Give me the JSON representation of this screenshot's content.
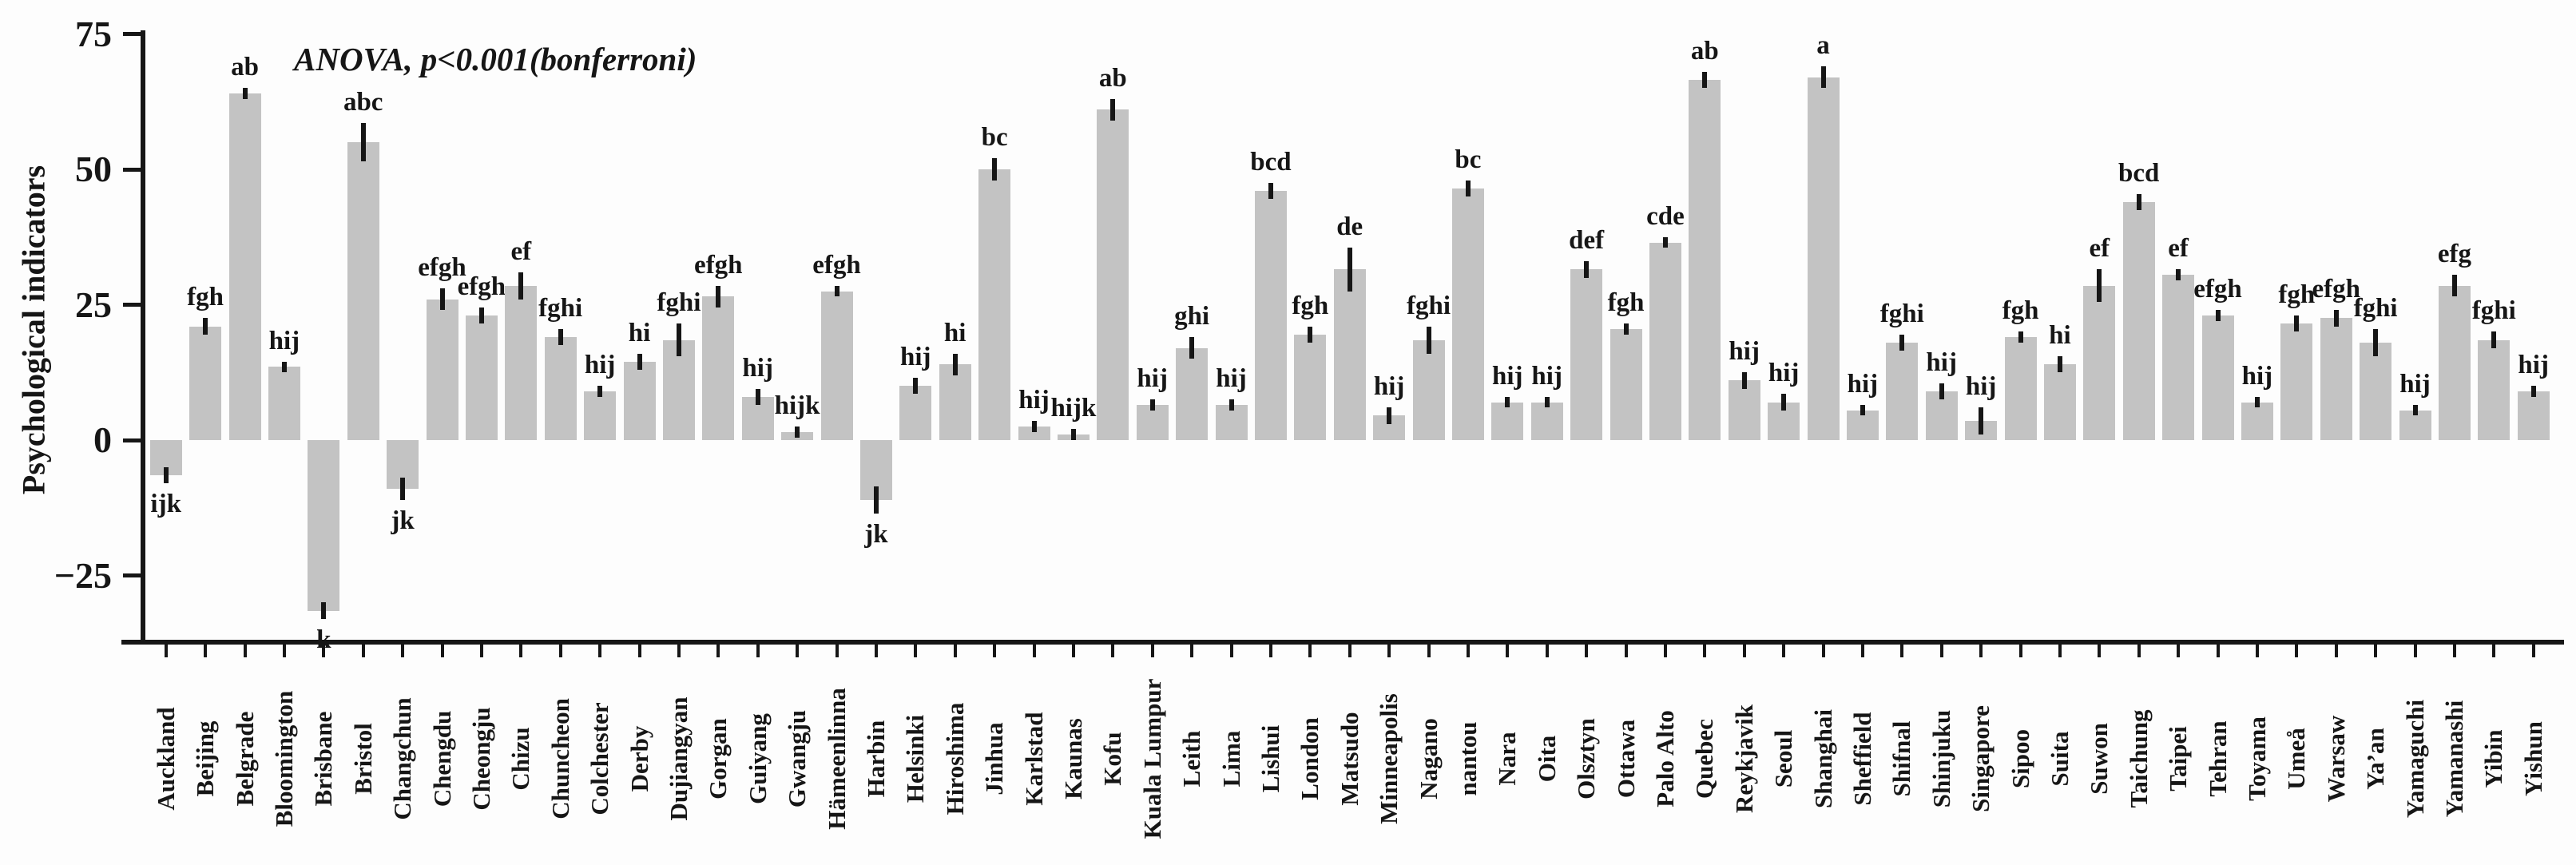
{
  "figure": {
    "ylabel": "Psychological indicators",
    "annotation": "ANOVA, p<0.001(bonferroni)"
  },
  "chart_data": {
    "type": "bar",
    "title": "",
    "annotation": "ANOVA, p<0.001(bonferroni)",
    "xlabel": "",
    "ylabel": "Psychological indicators",
    "ylim": [
      -37,
      76
    ],
    "yticks": [
      75,
      50,
      25,
      0,
      -25
    ],
    "ytick_labels": [
      "75",
      "50",
      "25",
      "0",
      "−25"
    ],
    "grid": false,
    "legend": "none",
    "bar_color": "#c3c3c3",
    "axis_color": "#161616",
    "error_bar_color": "#161616",
    "categories": [
      "Auckland",
      "Beijing",
      "Belgrade",
      "Bloomington",
      "Brisbane",
      "Bristol",
      "Changchun",
      "Chengdu",
      "Cheongju",
      "Chizu",
      "Chuncheon",
      "Colchester",
      "Derby",
      "Dujiangyan",
      "Gorgan",
      "Guiyang",
      "Gwangju",
      "Hämeenlinna",
      "Harbin",
      "Helsinki",
      "Hiroshima",
      "Jinhua",
      "Karlstad",
      "Kaunas",
      "Kofu",
      "Kuala Lumpur",
      "Leith",
      "Lima",
      "Lishui",
      "London",
      "Matsudo",
      "Minneapolis",
      "Nagano",
      "nantou",
      "Nara",
      "Oita",
      "Olsztyn",
      "Ottawa",
      "Palo Alto",
      "Quebec",
      "Reykjavik",
      "Seoul",
      "Shanghai",
      "Sheffield",
      "Shifnal",
      "Shinjuku",
      "Singapore",
      "Sipoo",
      "Suita",
      "Suwon",
      "Taichung",
      "Taipei",
      "Tehran",
      "Toyama",
      "Umeå",
      "Warsaw",
      "Ya’an",
      "Yamaguchi",
      "Yamanashi",
      "Yibin",
      "Yishun"
    ],
    "values": [
      -6.5,
      21,
      64,
      13.5,
      -31.5,
      55,
      -9,
      26,
      23,
      28.5,
      19,
      9,
      14.5,
      18.5,
      26.5,
      8,
      1.5,
      27.5,
      -11,
      10,
      14,
      50,
      2.5,
      1,
      61,
      6.5,
      17,
      6.5,
      46,
      19.5,
      31.5,
      4.5,
      18.5,
      46.5,
      7,
      7,
      31.5,
      20.5,
      36.5,
      66.5,
      11,
      7,
      67,
      5.5,
      18,
      9,
      3.5,
      19,
      14,
      28.5,
      44,
      30.5,
      23,
      7,
      21.5,
      22.5,
      18,
      5.5,
      28.5,
      18.5,
      9
    ],
    "errors": [
      1.5,
      1.5,
      1,
      1,
      1.5,
      3.5,
      2,
      2,
      1.5,
      2.5,
      1.5,
      1,
      1.5,
      3,
      2,
      1.5,
      1,
      1,
      2.5,
      1.5,
      2,
      2,
      1,
      1,
      2,
      1,
      2,
      1,
      1.5,
      1.5,
      4,
      1.5,
      2.5,
      1.5,
      1,
      1,
      1.5,
      1,
      1,
      1.5,
      1.5,
      1.5,
      2,
      1,
      1.5,
      1.5,
      2.5,
      1,
      1.5,
      3,
      1.5,
      1,
      1,
      1,
      1.5,
      1.5,
      2.5,
      1,
      2,
      1.5,
      1
    ],
    "sig_letters": [
      "ijk",
      "fgh",
      "ab",
      "hij",
      "k",
      "abc",
      "jk",
      "efgh",
      "efgh",
      "ef",
      "fghi",
      "hij",
      "hi",
      "fghi",
      "efgh",
      "hij",
      "hijk",
      "efgh",
      "jk",
      "hij",
      "hi",
      "bc",
      "hij",
      "hijk",
      "ab",
      "hij",
      "ghi",
      "hij",
      "bcd",
      "fgh",
      "de",
      "hij",
      "fghi",
      "bc",
      "hij",
      "hij",
      "def",
      "fgh",
      "cde",
      "ab",
      "hij",
      "hij",
      "a",
      "hij",
      "fghi",
      "hij",
      "hij",
      "fgh",
      "hi",
      "ef",
      "bcd",
      "ef",
      "efgh",
      "hij",
      "fgh",
      "efgh",
      "fghi",
      "hij",
      "efg",
      "fghi",
      "hij"
    ]
  }
}
